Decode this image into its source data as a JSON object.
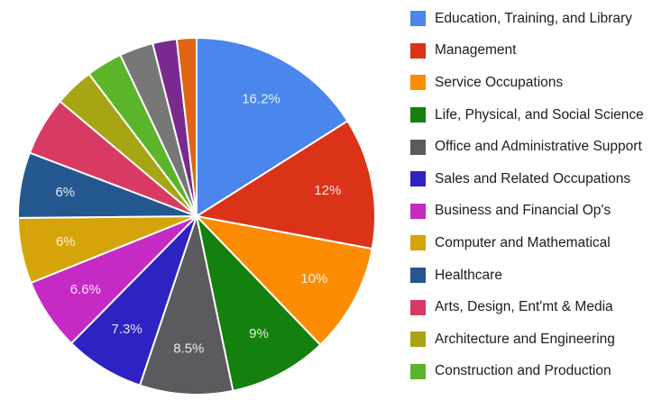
{
  "chart_data": {
    "type": "pie",
    "start_angle_deg": 0,
    "direction": "clockwise",
    "legend_position": "right",
    "slices": [
      {
        "name": "Education, Training, and Library",
        "value": 16.2,
        "label": "16.2%",
        "color": "#4a86ec"
      },
      {
        "name": "Management",
        "value": 12,
        "label": "12%",
        "color": "#db3318"
      },
      {
        "name": "Service Occupations",
        "value": 10,
        "label": "10%",
        "color": "#fd8c05"
      },
      {
        "name": "Life, Physical, and Social Science",
        "value": 9,
        "label": "9%",
        "color": "#14800d"
      },
      {
        "name": "Office and Administrative Support",
        "value": 8.5,
        "label": "8.5%",
        "color": "#5b5b5f"
      },
      {
        "name": "Sales and Related Occupations",
        "value": 7.3,
        "label": "7.3%",
        "color": "#2f22c2"
      },
      {
        "name": "Business and Financial Op's",
        "value": 6.6,
        "label": "6.6%",
        "color": "#c52ac5"
      },
      {
        "name": "Computer and Mathematical",
        "value": 6,
        "label": "6%",
        "color": "#d4a40a"
      },
      {
        "name": "Healthcare",
        "value": 6,
        "label": "6%",
        "color": "#24578e"
      },
      {
        "name": "Arts, Design, Ent'mt & Media",
        "value": 5.4,
        "label": "",
        "color": "#d93a63"
      },
      {
        "name": "Architecture and Engineering",
        "value": 3.6,
        "label": "",
        "color": "#a7a514"
      },
      {
        "name": "Construction and Production",
        "value": 3.3,
        "label": "",
        "color": "#5bb52a"
      },
      {
        "name": "",
        "value": 3.1,
        "label": "",
        "color": "#777777"
      },
      {
        "name": "",
        "value": 2.2,
        "label": "",
        "color": "#7a2a8e"
      },
      {
        "name": "",
        "value": 1.8,
        "label": "",
        "color": "#e06412"
      }
    ]
  }
}
